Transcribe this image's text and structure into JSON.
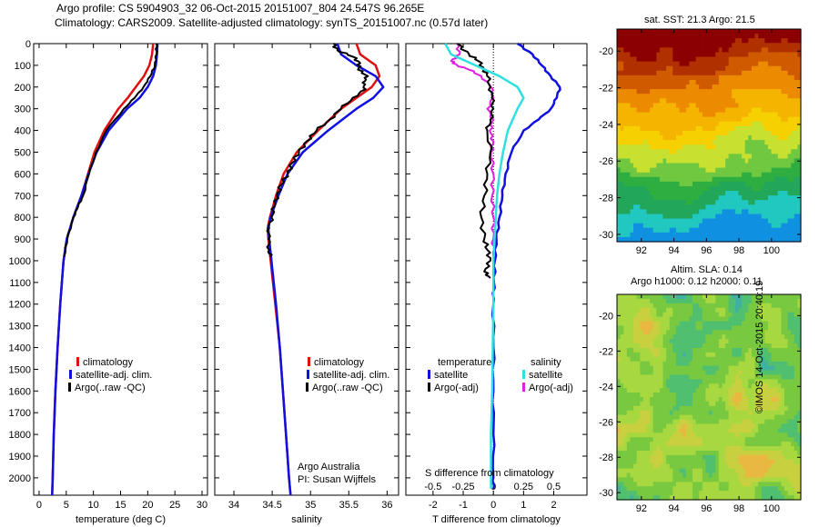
{
  "header": {
    "title_line1": "Argo profile: CS 5904903_32 06-Oct-2015 20151007_804 24.547S 96.265E",
    "title_line2": "Climatology: CARS2009. Satellite-adjusted climatology: synTS_20151007.nc (0.57d later)"
  },
  "colors": {
    "climatology": "#e01010",
    "satellite": "#1010e0",
    "argo": "#000000",
    "s_satellite": "#30e0e0",
    "s_argo": "#e020e0"
  },
  "chart_data": [
    {
      "type": "line",
      "title": "",
      "xlabel": "temperature (deg C)",
      "ylabel": "",
      "xlim": [
        -1,
        31
      ],
      "ylim": [
        2080,
        0
      ],
      "xticks": [
        "0",
        "5",
        "10",
        "15",
        "20",
        "25",
        "30"
      ],
      "yticks": [
        "0",
        "100",
        "200",
        "300",
        "400",
        "500",
        "600",
        "700",
        "800",
        "900",
        "1000",
        "1100",
        "1200",
        "1300",
        "1400",
        "1500",
        "1600",
        "1700",
        "1800",
        "1900",
        "2000"
      ],
      "legend": [
        "climatology",
        "satellite-adj. clim.",
        "Argo(..raw -QC)"
      ],
      "series": [
        {
          "name": "climatology",
          "y": [
            0,
            50,
            100,
            150,
            200,
            250,
            300,
            400,
            500,
            600,
            700,
            800,
            900,
            1000,
            1200,
            1400,
            1600,
            1800,
            2000,
            2080
          ],
          "x": [
            21,
            20.8,
            20.3,
            19.3,
            17.8,
            16.3,
            14.6,
            12,
            10.2,
            9,
            7.8,
            6.3,
            5.1,
            4.5,
            3.9,
            3.4,
            3,
            2.7,
            2.5,
            2.4
          ]
        },
        {
          "name": "satellite-adj. clim.",
          "y": [
            0,
            50,
            100,
            150,
            200,
            250,
            300,
            400,
            500,
            600,
            700,
            800,
            900,
            1000,
            1200,
            1400,
            1600,
            1800,
            2000,
            2080
          ],
          "x": [
            21.8,
            21.7,
            21.5,
            21,
            20,
            18.5,
            16.2,
            12.8,
            10.6,
            9.1,
            7.8,
            6.3,
            5.1,
            4.5,
            3.9,
            3.4,
            3,
            2.7,
            2.5,
            2.4
          ]
        },
        {
          "name": "Argo(..raw -QC)",
          "y": [
            0,
            50,
            100,
            150,
            200,
            250,
            300,
            400,
            500,
            600,
            700,
            750,
            800,
            900,
            980
          ],
          "x": [
            21.6,
            21.6,
            21.3,
            20.5,
            19.2,
            17.6,
            15.6,
            12.4,
            10.5,
            9.2,
            8.1,
            7.2,
            6.3,
            5.2,
            4.6
          ]
        }
      ]
    },
    {
      "type": "line",
      "title": "",
      "xlabel": "salinity",
      "ylabel": "",
      "xlim": [
        33.75,
        36.15
      ],
      "ylim": [
        2080,
        0
      ],
      "xticks": [
        "34",
        "34.5",
        "35",
        "35.5",
        "36"
      ],
      "legend": [
        "climatology",
        "satellite-adj. clim.",
        "Argo(..raw -QC)"
      ],
      "series": [
        {
          "name": "climatology",
          "y": [
            0,
            50,
            100,
            150,
            200,
            250,
            300,
            400,
            500,
            600,
            700,
            800,
            850,
            900,
            1000,
            1200,
            1400,
            1600,
            1800,
            2000,
            2080
          ],
          "x": [
            35.6,
            35.65,
            35.85,
            35.9,
            35.8,
            35.6,
            35.4,
            35.1,
            34.82,
            34.65,
            34.55,
            34.47,
            34.44,
            34.45,
            34.48,
            34.54,
            34.6,
            34.64,
            34.68,
            34.72,
            34.74
          ]
        },
        {
          "name": "satellite-adj. clim.",
          "y": [
            0,
            50,
            100,
            150,
            200,
            250,
            300,
            400,
            500,
            600,
            700,
            800,
            850,
            900,
            1000,
            1200,
            1400,
            1600,
            1800,
            2000,
            2080
          ],
          "x": [
            35.35,
            35.4,
            35.6,
            35.85,
            35.95,
            35.82,
            35.6,
            35.23,
            34.9,
            34.7,
            34.58,
            34.48,
            34.45,
            34.46,
            34.49,
            34.55,
            34.6,
            34.64,
            34.68,
            34.72,
            34.74
          ]
        },
        {
          "name": "Argo(..raw -QC)",
          "y": [
            0,
            30,
            60,
            90,
            120,
            150,
            180,
            210,
            250,
            300,
            350,
            400,
            450,
            500,
            550,
            600,
            650,
            700,
            750,
            800,
            850,
            900,
            950,
            980
          ],
          "x": [
            35.3,
            35.35,
            35.55,
            35.65,
            35.62,
            35.75,
            35.68,
            35.72,
            35.55,
            35.4,
            35.25,
            35.08,
            34.95,
            34.85,
            34.76,
            34.7,
            34.62,
            34.56,
            34.53,
            34.49,
            34.46,
            34.45,
            34.46,
            34.47
          ]
        }
      ],
      "annotation": {
        "line1": "Argo Australia",
        "line2": "PI: Susan Wijffels"
      }
    },
    {
      "type": "line",
      "title": "",
      "xlabel": "T difference from climatology",
      "xlabel_top": "S difference from climatology",
      "ylabel": "",
      "xlim": [
        -2.9,
        3.1
      ],
      "ylim": [
        2080,
        0
      ],
      "xticks": [
        "-2",
        "-1",
        "0",
        "1",
        "2"
      ],
      "xticks_top": [
        "-0.5",
        "-0.25",
        "0",
        "0.25",
        "0.5"
      ],
      "legend_groups": {
        "temperature": "temperature",
        "salinity": "salinity"
      },
      "legend": [
        "satellite",
        "Argo(-adj)",
        "satellite",
        "Argo(-adj)"
      ],
      "series": [
        {
          "name": "satellite",
          "y": [
            0,
            50,
            100,
            150,
            200,
            250,
            300,
            350,
            400,
            500,
            600,
            700,
            800,
            900,
            1000,
            1100,
            1200,
            1400,
            1600,
            1800,
            2000,
            2050
          ],
          "x": [
            0.8,
            1.3,
            1.6,
            1.9,
            2.2,
            2.1,
            1.9,
            1.5,
            1,
            0.6,
            0.4,
            0.3,
            0.2,
            0.1,
            0.05,
            0.02,
            0,
            0,
            0,
            0,
            0,
            0
          ]
        },
        {
          "name": "Argo(-adj)",
          "y": [
            0,
            50,
            80,
            120,
            150,
            200,
            250,
            300,
            350,
            400,
            500,
            600,
            700,
            800,
            900,
            950,
            1000,
            1050,
            1080
          ],
          "x": [
            -1.2,
            -0.8,
            -0.5,
            -0.3,
            -0.2,
            -0.1,
            -0.05,
            0,
            -0.1,
            -0.2,
            -0.1,
            -0.2,
            -0.3,
            -0.4,
            -0.3,
            -0.2,
            -0.1,
            -0.3,
            -0.1
          ]
        },
        {
          "name": "satellite",
          "y": [
            0,
            50,
            100,
            150,
            200,
            250,
            300,
            400,
            500,
            600,
            700,
            800,
            900,
            1000,
            1100,
            1200,
            1400,
            1600,
            1800,
            2000,
            2050
          ],
          "x": [
            -0.4,
            -0.35,
            -0.15,
            0.05,
            0.2,
            0.25,
            0.2,
            0.12,
            0.08,
            0.05,
            0.03,
            0.02,
            0.01,
            0,
            0,
            0,
            -0.005,
            -0.01,
            -0.02,
            -0.02,
            -0.02
          ]
        },
        {
          "name": "Argo(-adj)",
          "y": [
            0,
            50,
            80,
            100,
            120,
            150,
            200,
            250,
            300,
            350,
            400,
            450,
            500,
            600,
            700,
            800,
            900,
            980
          ],
          "x": [
            -0.3,
            -0.28,
            -0.35,
            -0.3,
            -0.2,
            -0.1,
            -0.02,
            0,
            -0.05,
            0,
            -0.03,
            0,
            -0.02,
            0,
            -0.01,
            0,
            0,
            0
          ]
        }
      ]
    },
    {
      "type": "heatmap",
      "title": "sat. SST: 21.3 Argo: 21.5",
      "xlim": [
        90.5,
        101.8
      ],
      "ylim": [
        -30.4,
        -18.8
      ],
      "xticks": [
        "92",
        "94",
        "96",
        "98",
        "100"
      ],
      "yticks": [
        "-20",
        "-22",
        "-24",
        "-26",
        "-28",
        "-30"
      ],
      "color_bands": [
        "#8b0000",
        "#b03000",
        "#d05a00",
        "#ec8a00",
        "#f4b400",
        "#f6d000",
        "#c8e030",
        "#70c840",
        "#2eae40",
        "#22a65a",
        "#20c8c0",
        "#1090e0"
      ],
      "marker": {
        "x": 96.265,
        "y": -24.547
      }
    },
    {
      "type": "heatmap",
      "title_line1": "Altim. SLA: 0.14",
      "title_line2": "Argo h1000: 0.12 h2000: 0.11",
      "xlim": [
        90.5,
        101.8
      ],
      "ylim": [
        -30.4,
        -18.8
      ],
      "xticks": [
        "92",
        "94",
        "96",
        "98",
        "100"
      ],
      "yticks": [
        "-20",
        "-22",
        "-24",
        "-26",
        "-28",
        "-30"
      ],
      "color_bands": [
        "#e8b840",
        "#c8d040",
        "#a8d840",
        "#78c840",
        "#50c070",
        "#40b0a0"
      ],
      "marker": {
        "x": 96.265,
        "y": -24.547
      }
    }
  ],
  "footer": {
    "stamp": "©IMOS 14-Oct-2015 20:40:19"
  }
}
